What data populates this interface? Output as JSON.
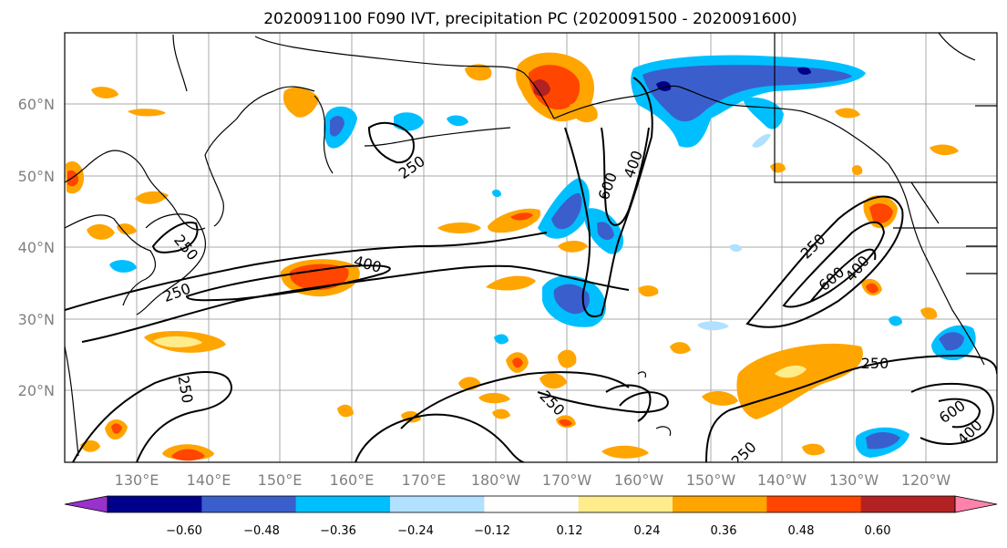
{
  "title": "2020091100 F090 IVT, precipitation PC (2020091500 - 2020091600)",
  "lat_labels": [
    "60°N",
    "50°N",
    "40°N",
    "30°N",
    "20°N"
  ],
  "lon_labels": [
    "130°E",
    "140°E",
    "150°E",
    "160°E",
    "170°E",
    "180°W",
    "170°W",
    "160°W",
    "150°W",
    "140°W",
    "130°W",
    "120°W"
  ],
  "contour_labels": [
    "250",
    "400",
    "600",
    "250",
    "400",
    "250",
    "250",
    "600",
    "400",
    "250",
    "250",
    "600",
    "400",
    "250",
    "250"
  ],
  "colorbar": {
    "ticks": [
      "−0.60",
      "−0.48",
      "−0.36",
      "−0.24",
      "−0.12",
      "0.12",
      "0.24",
      "0.36",
      "0.48",
      "0.60"
    ],
    "colors": [
      "#9932cc",
      "#00008b",
      "#3a5fcd",
      "#00bfff",
      "#b2e0ff",
      "#ffffff",
      "#ffec8b",
      "#ffa500",
      "#ff4500",
      "#b22222",
      "#ff82ab"
    ]
  }
}
